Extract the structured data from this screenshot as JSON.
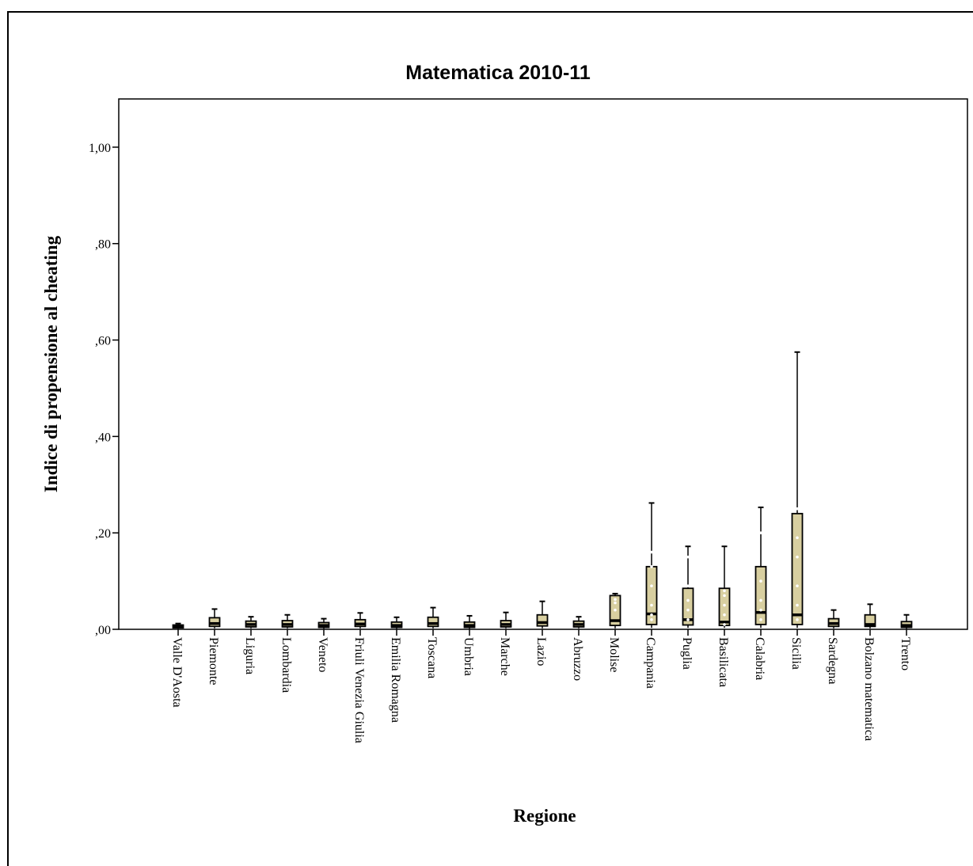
{
  "chart_data": {
    "type": "boxplot",
    "title": "Matematica 2010-11",
    "xlabel": "Regione",
    "ylabel": "Indice di propensione al cheating",
    "ylim": [
      0,
      1.1
    ],
    "yticks": [
      {
        "value": 0.0,
        "label": ",00"
      },
      {
        "value": 0.2,
        "label": ",20"
      },
      {
        "value": 0.4,
        "label": ",40"
      },
      {
        "value": 0.6,
        "label": ",60"
      },
      {
        "value": 0.8,
        "label": ",80"
      },
      {
        "value": 1.0,
        "label": "1,00"
      }
    ],
    "grid": false,
    "colors": {
      "box_fill": "#d8cfa0",
      "stroke": "#000000",
      "outlier": "#ffffff"
    },
    "categories": [
      "Valle D'Aosta",
      "Piemonte",
      "Liguria",
      "Lombardia",
      "Veneto",
      "Friuli Venezia Giulia",
      "Emilia Romagna",
      "Toscana",
      "Umbria",
      "Marche",
      "Lazio",
      "Abruzzo",
      "Molise",
      "Campania",
      "Puglia",
      "Basilicata",
      "Calabria",
      "Sicilia",
      "Sardegna",
      "Bolzano matematica",
      "Trento"
    ],
    "boxes": [
      {
        "min": 0.001,
        "q1": 0.003,
        "median": 0.006,
        "q3": 0.009,
        "max": 0.012
      },
      {
        "min": 0.002,
        "q1": 0.006,
        "median": 0.012,
        "q3": 0.024,
        "max": 0.042
      },
      {
        "min": 0.002,
        "q1": 0.005,
        "median": 0.01,
        "q3": 0.017,
        "max": 0.026
      },
      {
        "min": 0.002,
        "q1": 0.005,
        "median": 0.01,
        "q3": 0.018,
        "max": 0.03
      },
      {
        "min": 0.001,
        "q1": 0.004,
        "median": 0.008,
        "q3": 0.014,
        "max": 0.022
      },
      {
        "min": 0.002,
        "q1": 0.006,
        "median": 0.011,
        "q3": 0.02,
        "max": 0.034
      },
      {
        "min": 0.001,
        "q1": 0.004,
        "median": 0.008,
        "q3": 0.015,
        "max": 0.025
      },
      {
        "min": 0.002,
        "q1": 0.006,
        "median": 0.012,
        "q3": 0.025,
        "max": 0.045
      },
      {
        "min": 0.001,
        "q1": 0.004,
        "median": 0.008,
        "q3": 0.015,
        "max": 0.028
      },
      {
        "min": 0.002,
        "q1": 0.005,
        "median": 0.01,
        "q3": 0.018,
        "max": 0.035
      },
      {
        "min": 0.002,
        "q1": 0.007,
        "median": 0.014,
        "q3": 0.03,
        "max": 0.058
      },
      {
        "min": 0.002,
        "q1": 0.005,
        "median": 0.01,
        "q3": 0.017,
        "max": 0.026
      },
      {
        "min": 0.002,
        "q1": 0.008,
        "median": 0.018,
        "q3": 0.07,
        "max": 0.074
      },
      {
        "min": 0.003,
        "q1": 0.01,
        "median": 0.032,
        "q3": 0.13,
        "max": 0.262
      },
      {
        "min": 0.003,
        "q1": 0.009,
        "median": 0.02,
        "q3": 0.085,
        "max": 0.172
      },
      {
        "min": 0.003,
        "q1": 0.008,
        "median": 0.015,
        "q3": 0.085,
        "max": 0.172
      },
      {
        "min": 0.003,
        "q1": 0.01,
        "median": 0.035,
        "q3": 0.13,
        "max": 0.253
      },
      {
        "min": 0.003,
        "q1": 0.01,
        "median": 0.03,
        "q3": 0.24,
        "max": 0.575
      },
      {
        "min": 0.002,
        "q1": 0.006,
        "median": 0.012,
        "q3": 0.022,
        "max": 0.04
      },
      {
        "min": 0.002,
        "q1": 0.006,
        "median": 0.01,
        "q3": 0.03,
        "max": 0.052
      },
      {
        "min": 0.001,
        "q1": 0.004,
        "median": 0.008,
        "q3": 0.016,
        "max": 0.03
      }
    ],
    "outlier_markers": [
      {
        "category": "Molise",
        "values": [
          0.04,
          0.055,
          0.062
        ]
      },
      {
        "category": "Campania",
        "values": [
          0.02,
          0.03,
          0.05,
          0.09,
          0.13,
          0.16
        ]
      },
      {
        "category": "Puglia",
        "values": [
          0.02,
          0.04,
          0.06,
          0.09,
          0.15
        ]
      },
      {
        "category": "Basilicata",
        "values": [
          0.01,
          0.03,
          0.05,
          0.07,
          0.08
        ]
      },
      {
        "category": "Calabria",
        "values": [
          0.02,
          0.04,
          0.06,
          0.1,
          0.2
        ]
      },
      {
        "category": "Sicilia",
        "values": [
          0.02,
          0.05,
          0.09,
          0.15,
          0.19,
          0.25
        ]
      }
    ]
  }
}
